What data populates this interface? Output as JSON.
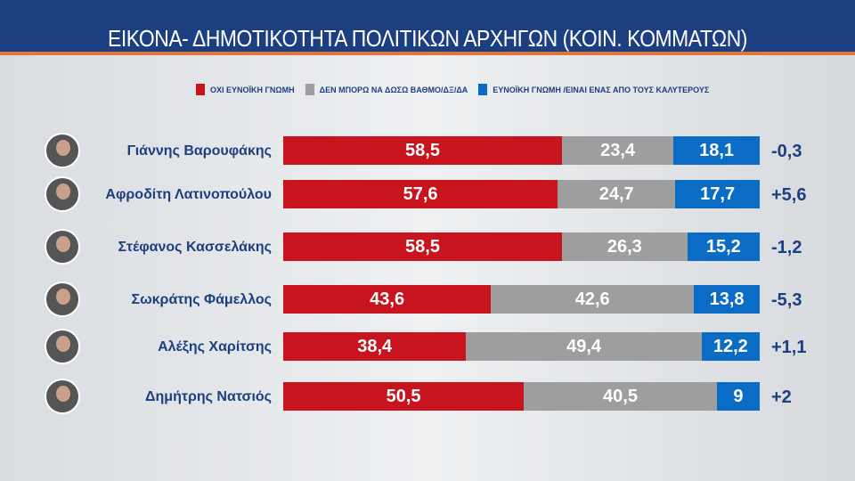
{
  "chart_data": {
    "type": "bar",
    "stacked": true,
    "orientation": "horizontal",
    "title": "ΕΙΚΟΝΑ- ΔΗΜΟΤΙΚΟΤΗΤΑ ΠΟΛΙΤΙΚΩΝ ΑΡΧΗΓΩΝ (ΚΟΙΝ. ΚΟΜΜΑΤΩΝ)",
    "legend_position": "top",
    "categories": [
      "Γιάννης Βαρουφάκης",
      "Αφροδίτη Λατινοπούλου",
      "Στέφανος Κασσελάκης",
      "Σωκράτης Φάμελλος",
      "Αλέξης Χαρίτσης",
      "Δημήτρης Νατσιός"
    ],
    "series": [
      {
        "name": "ΟΧΙ ΕΥΝΟΪΚΗ ΓΝΩΜΗ",
        "color": "#c8141e",
        "values": [
          "58,5",
          "57,6",
          "58,5",
          "43,6",
          "38,4",
          "50,5"
        ]
      },
      {
        "name": "ΔΕΝ ΜΠΟΡΩ ΝΑ ΔΩΣΩ ΒΑΘΜΟ/ΔΞ/ΔΑ",
        "color": "#9e9e9e",
        "values": [
          "23,4",
          "24,7",
          "26,3",
          "42,6",
          "49,4",
          "40,5"
        ]
      },
      {
        "name": "ΕΥΝΟΪΚΗ ΓΝΩΜΗ /ΕΙΝΑΙ ΕΝΑΣ ΑΠΟ ΤΟΥΣ ΚΑΛΥΤΕΡΟΥΣ",
        "color": "#0a6cc4",
        "values": [
          "18,1",
          "17,7",
          "15,2",
          "13,8",
          "12,2",
          "9"
        ]
      }
    ],
    "changes": [
      "-0,3",
      "+5,6",
      "-1,2",
      "-5,3",
      "+1,1",
      "+2"
    ],
    "xlim": [
      0,
      100
    ]
  }
}
